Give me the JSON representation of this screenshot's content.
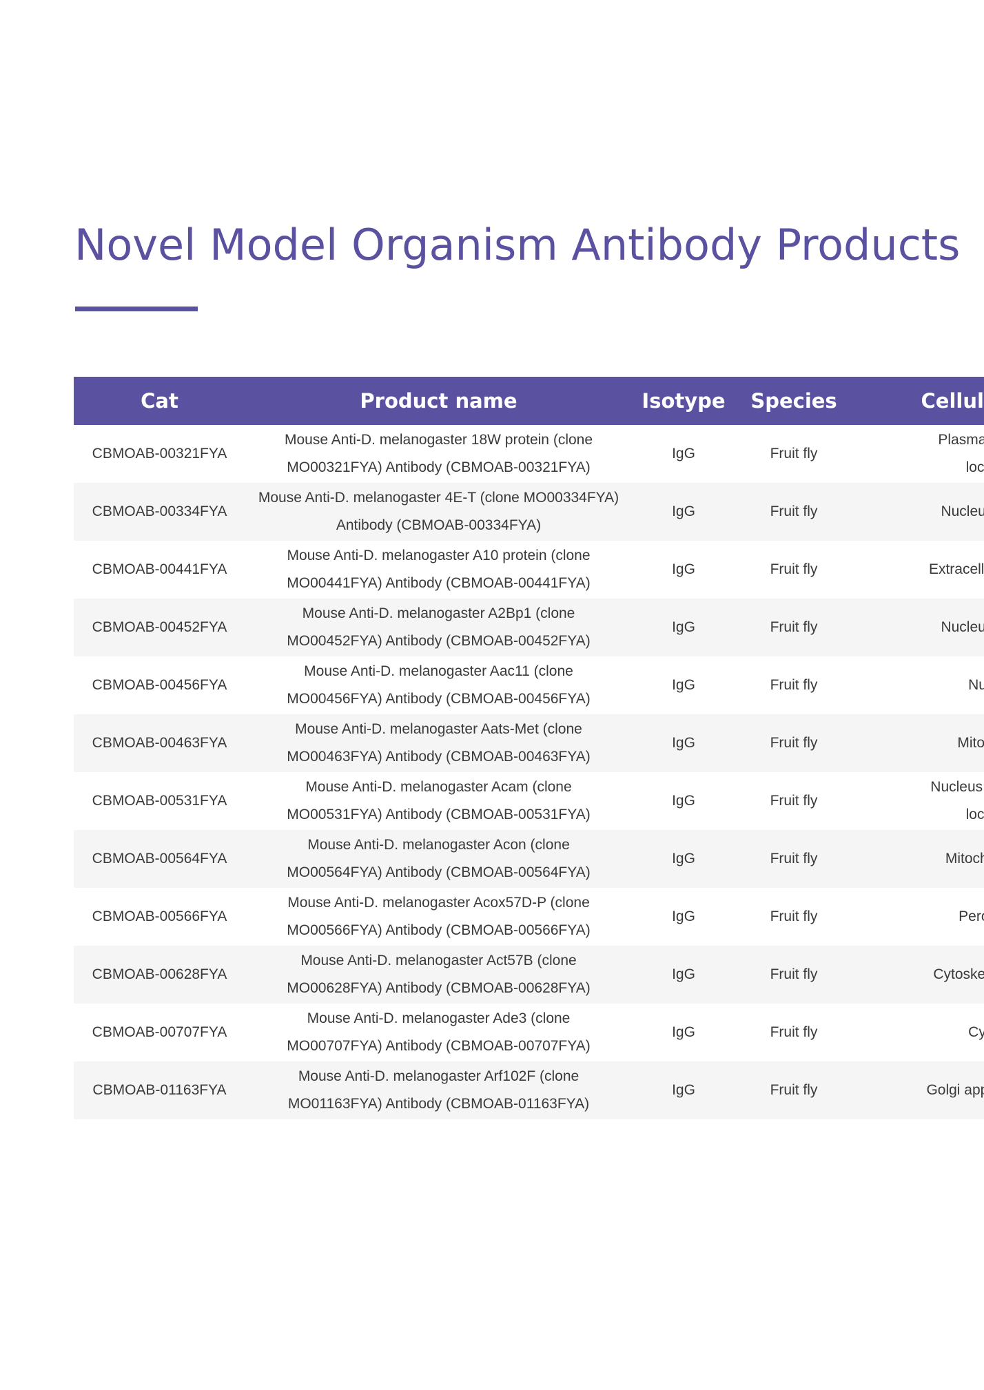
{
  "page": {
    "title": "Novel Model Organism Antibody Products"
  },
  "colors": {
    "accent": "#5a52a0",
    "row_alt": "#f5f5f5",
    "text": "#3a3a3a"
  },
  "table": {
    "headers": {
      "cat": "Cat",
      "name": "Product name",
      "isotype": "Isotype",
      "species": "Species",
      "location": "Cellular Loc"
    },
    "rows": [
      {
        "cat": "CBMOAB-00321FYA",
        "name_l1": "Mouse Anti-D. melanogaster 18W protein (clone",
        "name_l2": "MO00321FYA) Antibody (CBMOAB-00321FYA)",
        "isotype": "IgG",
        "species": "Fruit fly",
        "loc_l1": "Plasma Membr",
        "loc_l2": "locatio"
      },
      {
        "cat": "CBMOAB-00334FYA",
        "name_l1": "Mouse Anti-D. melanogaster 4E-T (clone MO00334FYA)",
        "name_l2": "Antibody (CBMOAB-00334FYA)",
        "isotype": "IgG",
        "species": "Fruit fly",
        "loc_l1": "Nucleus; Othe",
        "loc_l2": ""
      },
      {
        "cat": "CBMOAB-00441FYA",
        "name_l1": "Mouse Anti-D. melanogaster A10 protein (clone",
        "name_l2": "MO00441FYA) Antibody (CBMOAB-00441FYA)",
        "isotype": "IgG",
        "species": "Fruit fly",
        "loc_l1": "Extracellular regio",
        "loc_l2": ""
      },
      {
        "cat": "CBMOAB-00452FYA",
        "name_l1": "Mouse Anti-D. melanogaster A2Bp1 (clone",
        "name_l2": "MO00452FYA) Antibody (CBMOAB-00452FYA)",
        "isotype": "IgG",
        "species": "Fruit fly",
        "loc_l1": "Nucleus; Othe",
        "loc_l2": ""
      },
      {
        "cat": "CBMOAB-00456FYA",
        "name_l1": "Mouse Anti-D. melanogaster Aac11 (clone",
        "name_l2": "MO00456FYA) Antibody (CBMOAB-00456FYA)",
        "isotype": "IgG",
        "species": "Fruit fly",
        "loc_l1": "Nucle",
        "loc_l2": ""
      },
      {
        "cat": "CBMOAB-00463FYA",
        "name_l1": "Mouse Anti-D. melanogaster Aats-Met (clone",
        "name_l2": "MO00463FYA) Antibody (CBMOAB-00463FYA)",
        "isotype": "IgG",
        "species": "Fruit fly",
        "loc_l1": "Mitochon",
        "loc_l2": ""
      },
      {
        "cat": "CBMOAB-00531FYA",
        "name_l1": "Mouse Anti-D. melanogaster Acam (clone",
        "name_l2": "MO00531FYA) Antibody (CBMOAB-00531FYA)",
        "isotype": "IgG",
        "species": "Fruit fly",
        "loc_l1": "Nucleus; Cytoske",
        "loc_l2": "locatio"
      },
      {
        "cat": "CBMOAB-00564FYA",
        "name_l1": "Mouse Anti-D. melanogaster Acon (clone",
        "name_l2": "MO00564FYA) Antibody (CBMOAB-00564FYA)",
        "isotype": "IgG",
        "species": "Fruit fly",
        "loc_l1": "Mitochondrio",
        "loc_l2": ""
      },
      {
        "cat": "CBMOAB-00566FYA",
        "name_l1": "Mouse Anti-D. melanogaster Acox57D-P (clone",
        "name_l2": "MO00566FYA) Antibody (CBMOAB-00566FYA)",
        "isotype": "IgG",
        "species": "Fruit fly",
        "loc_l1": "Peroxiso",
        "loc_l2": ""
      },
      {
        "cat": "CBMOAB-00628FYA",
        "name_l1": "Mouse Anti-D. melanogaster Act57B (clone",
        "name_l2": "MO00628FYA) Antibody (CBMOAB-00628FYA)",
        "isotype": "IgG",
        "species": "Fruit fly",
        "loc_l1": "Cytoskeleton; Ot",
        "loc_l2": ""
      },
      {
        "cat": "CBMOAB-00707FYA",
        "name_l1": "Mouse Anti-D. melanogaster Ade3 (clone",
        "name_l2": "MO00707FYA) Antibody (CBMOAB-00707FYA)",
        "isotype": "IgG",
        "species": "Fruit fly",
        "loc_l1": "Cytos",
        "loc_l2": ""
      },
      {
        "cat": "CBMOAB-01163FYA",
        "name_l1": "Mouse Anti-D. melanogaster Arf102F (clone",
        "name_l2": "MO01163FYA) Antibody (CBMOAB-01163FYA)",
        "isotype": "IgG",
        "species": "Fruit fly",
        "loc_l1": "Golgi apparatus; C",
        "loc_l2": ""
      }
    ]
  }
}
